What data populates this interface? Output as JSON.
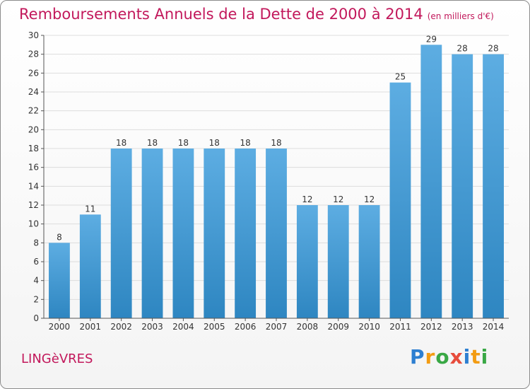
{
  "title": "Remboursements Annuels de la Dette de 2000 à 2014",
  "unit": "(en milliers d'€)",
  "commune": "LINGèVRES",
  "logo": {
    "letters": [
      "P",
      "r",
      "o",
      "x",
      "i",
      "t",
      "i"
    ],
    "colors": [
      "#2d7fd1",
      "#f39c12",
      "#39a845",
      "#e74c3c",
      "#2d7fd1",
      "#f39c12",
      "#39a845"
    ]
  },
  "colors": {
    "bar_light": "#5dade2",
    "bar_dark": "#2e86c1",
    "accent": "#c2185b",
    "grid": "#dddddd"
  },
  "chart_data": {
    "type": "bar",
    "title": "Remboursements Annuels de la Dette de 2000 à 2014",
    "ylabel": "",
    "xlabel": "",
    "categories": [
      "2000",
      "2001",
      "2002",
      "2003",
      "2004",
      "2005",
      "2006",
      "2007",
      "2008",
      "2009",
      "2010",
      "2011",
      "2012",
      "2013",
      "2014"
    ],
    "values": [
      8,
      11,
      18,
      18,
      18,
      18,
      18,
      18,
      12,
      12,
      12,
      25,
      29,
      28,
      28
    ],
    "ylim": [
      0,
      30
    ],
    "yticks": [
      0,
      2,
      4,
      6,
      8,
      10,
      12,
      14,
      16,
      18,
      20,
      22,
      24,
      26,
      28,
      30
    ],
    "grid": true
  }
}
